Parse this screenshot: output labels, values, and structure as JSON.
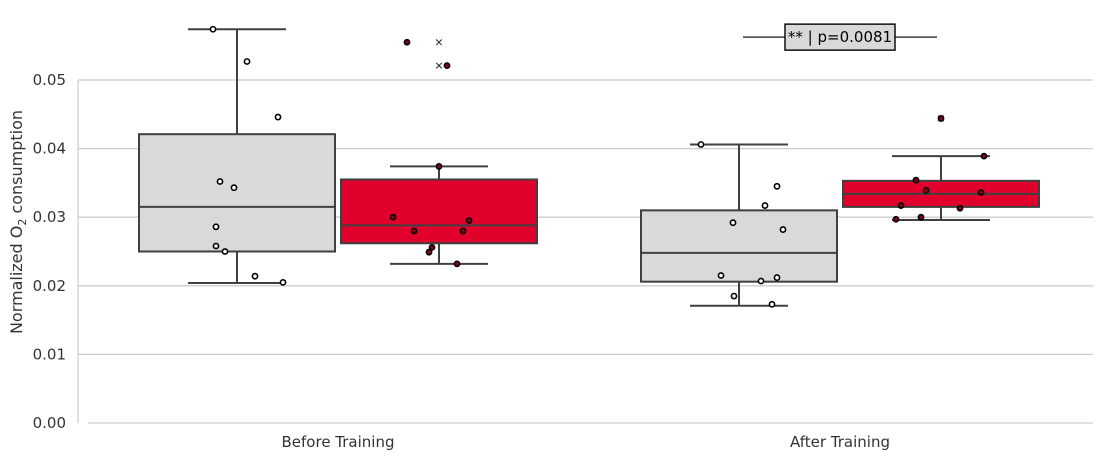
{
  "chart_data": {
    "type": "box",
    "categories": [
      "Before Training",
      "After Training"
    ],
    "ylabel_prefix": "Normalized O",
    "ylabel_sub": "2",
    "ylabel_suffix": " consumption",
    "ylim": [
      0.0,
      0.058
    ],
    "yticks": [
      "0.00",
      "0.01",
      "0.02",
      "0.03",
      "0.04",
      "0.05"
    ],
    "grid": true,
    "colors": {
      "group_a": "#d9d9d9",
      "group_b": "#e0002b",
      "edge": "#404040",
      "grid": "#cccccc"
    },
    "boxes": [
      {
        "category": "Before Training",
        "group": "a",
        "whisker_low": 0.0204,
        "q1": 0.025,
        "median": 0.0315,
        "q3": 0.0421,
        "whisker_high": 0.0574
      },
      {
        "category": "Before Training",
        "group": "b",
        "whisker_low": 0.0232,
        "q1": 0.0262,
        "median": 0.0288,
        "q3": 0.0355,
        "whisker_high": 0.0374
      },
      {
        "category": "After Training",
        "group": "a",
        "whisker_low": 0.0171,
        "q1": 0.0206,
        "median": 0.0248,
        "q3": 0.031,
        "whisker_high": 0.0406
      },
      {
        "category": "After Training",
        "group": "b",
        "whisker_low": 0.0296,
        "q1": 0.0315,
        "median": 0.0334,
        "q3": 0.0353,
        "whisker_high": 0.0389
      }
    ],
    "outliers": [
      {
        "category": "Before Training",
        "group": "b",
        "values": [
          0.0555,
          0.0521
        ]
      },
      {
        "category": "After Training",
        "group": "b",
        "values": [
          0.0444
        ]
      }
    ],
    "points": [
      {
        "category": "Before Training",
        "group": "a",
        "values": [
          0.0574,
          0.0527,
          0.0446,
          0.0352,
          0.0343,
          0.0286,
          0.0258,
          0.025,
          0.0214,
          0.0205
        ]
      },
      {
        "category": "Before Training",
        "group": "b",
        "values": [
          0.0555,
          0.0521,
          0.0374,
          0.03,
          0.0295,
          0.028,
          0.028,
          0.0256,
          0.0249,
          0.0232
        ]
      },
      {
        "category": "After Training",
        "group": "a",
        "values": [
          0.0406,
          0.0345,
          0.0317,
          0.0292,
          0.0282,
          0.0215,
          0.0212,
          0.0207,
          0.0185,
          0.0173
        ]
      },
      {
        "category": "After Training",
        "group": "b",
        "values": [
          0.0444,
          0.0389,
          0.0354,
          0.0339,
          0.0336,
          0.0317,
          0.0313,
          0.03,
          0.0297
        ]
      }
    ],
    "annotation": {
      "category": "After Training",
      "text": "** | p=0.0081",
      "y": 0.058
    }
  }
}
